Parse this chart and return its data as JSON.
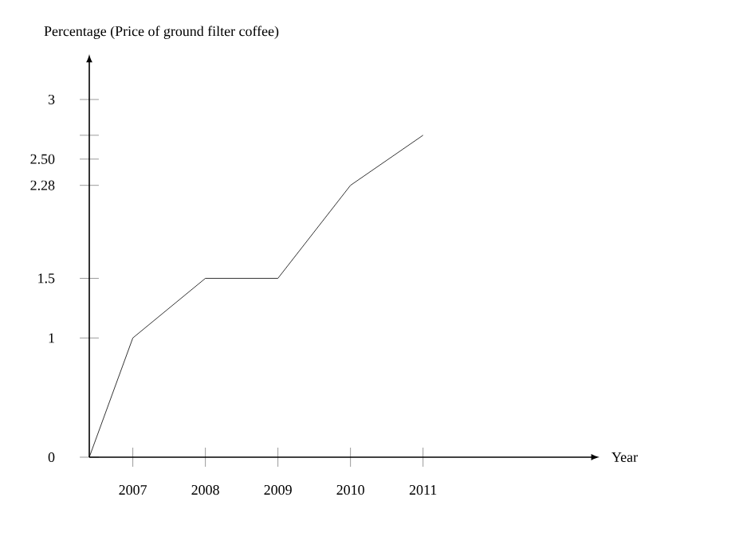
{
  "chart_data": {
    "type": "line",
    "ylabel": "Percentage (Price of ground filter coffee)",
    "xlabel": "Year",
    "x": [
      2006.4,
      2007,
      2008,
      2009,
      2010,
      2011
    ],
    "values": [
      0,
      1,
      1.5,
      1.5,
      2.28,
      2.7
    ],
    "color": "#000000",
    "xlim": [
      2006.4,
      2013.3
    ],
    "ylim": [
      0,
      3.3
    ],
    "xticks": [
      2007,
      2008,
      2009,
      2010,
      2011
    ],
    "yticks": [
      0,
      1,
      1.5,
      2.28,
      {
        "value": 2.5,
        "label": "2.50"
      },
      {
        "value": 2.7,
        "label": null
      },
      3
    ],
    "marker": "none",
    "line_style": "solid"
  }
}
